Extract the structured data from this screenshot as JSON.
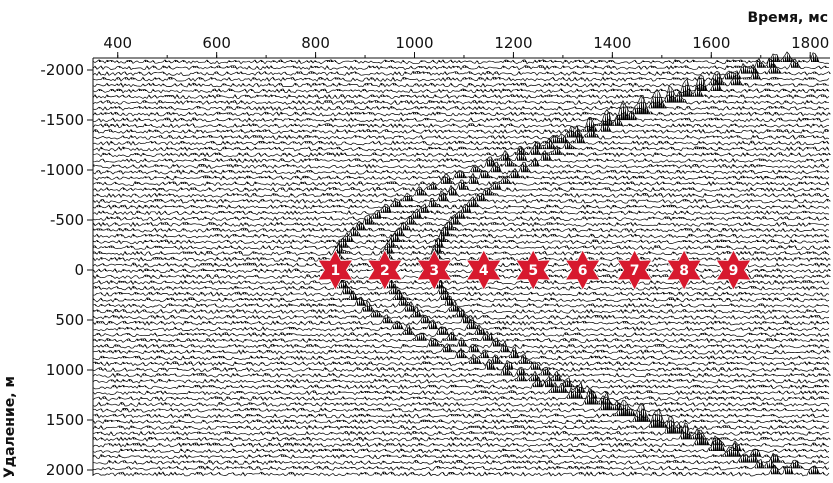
{
  "chart_data": {
    "type": "seismic-gather",
    "xlabel": "Время, мс",
    "ylabel": "Удаление, м",
    "x_ticks": [
      400,
      600,
      800,
      1000,
      1200,
      1400,
      1600,
      1800
    ],
    "y_ticks": [
      -2000,
      -1500,
      -1000,
      -500,
      0,
      500,
      1000,
      1500,
      2000
    ],
    "xlim": [
      350,
      1840
    ],
    "ylim": [
      -2000,
      2000
    ],
    "x_axis_position": "top",
    "trace_count": 72,
    "hyperbolas": [
      {
        "t0_ms": 840,
        "velocity_m_s": 2500
      },
      {
        "t0_ms": 940,
        "velocity_m_s": 2700
      },
      {
        "t0_ms": 1040,
        "velocity_m_s": 2900
      }
    ],
    "markers": [
      {
        "label": "1",
        "time_ms": 840
      },
      {
        "label": "2",
        "time_ms": 940
      },
      {
        "label": "3",
        "time_ms": 1040
      },
      {
        "label": "4",
        "time_ms": 1140
      },
      {
        "label": "5",
        "time_ms": 1240
      },
      {
        "label": "6",
        "time_ms": 1340
      },
      {
        "label": "7",
        "time_ms": 1445
      },
      {
        "label": "8",
        "time_ms": 1545
      },
      {
        "label": "9",
        "time_ms": 1645
      }
    ],
    "marker_offset_m": 0,
    "marker_color": "#d7192e",
    "trace_color": "#000000"
  }
}
